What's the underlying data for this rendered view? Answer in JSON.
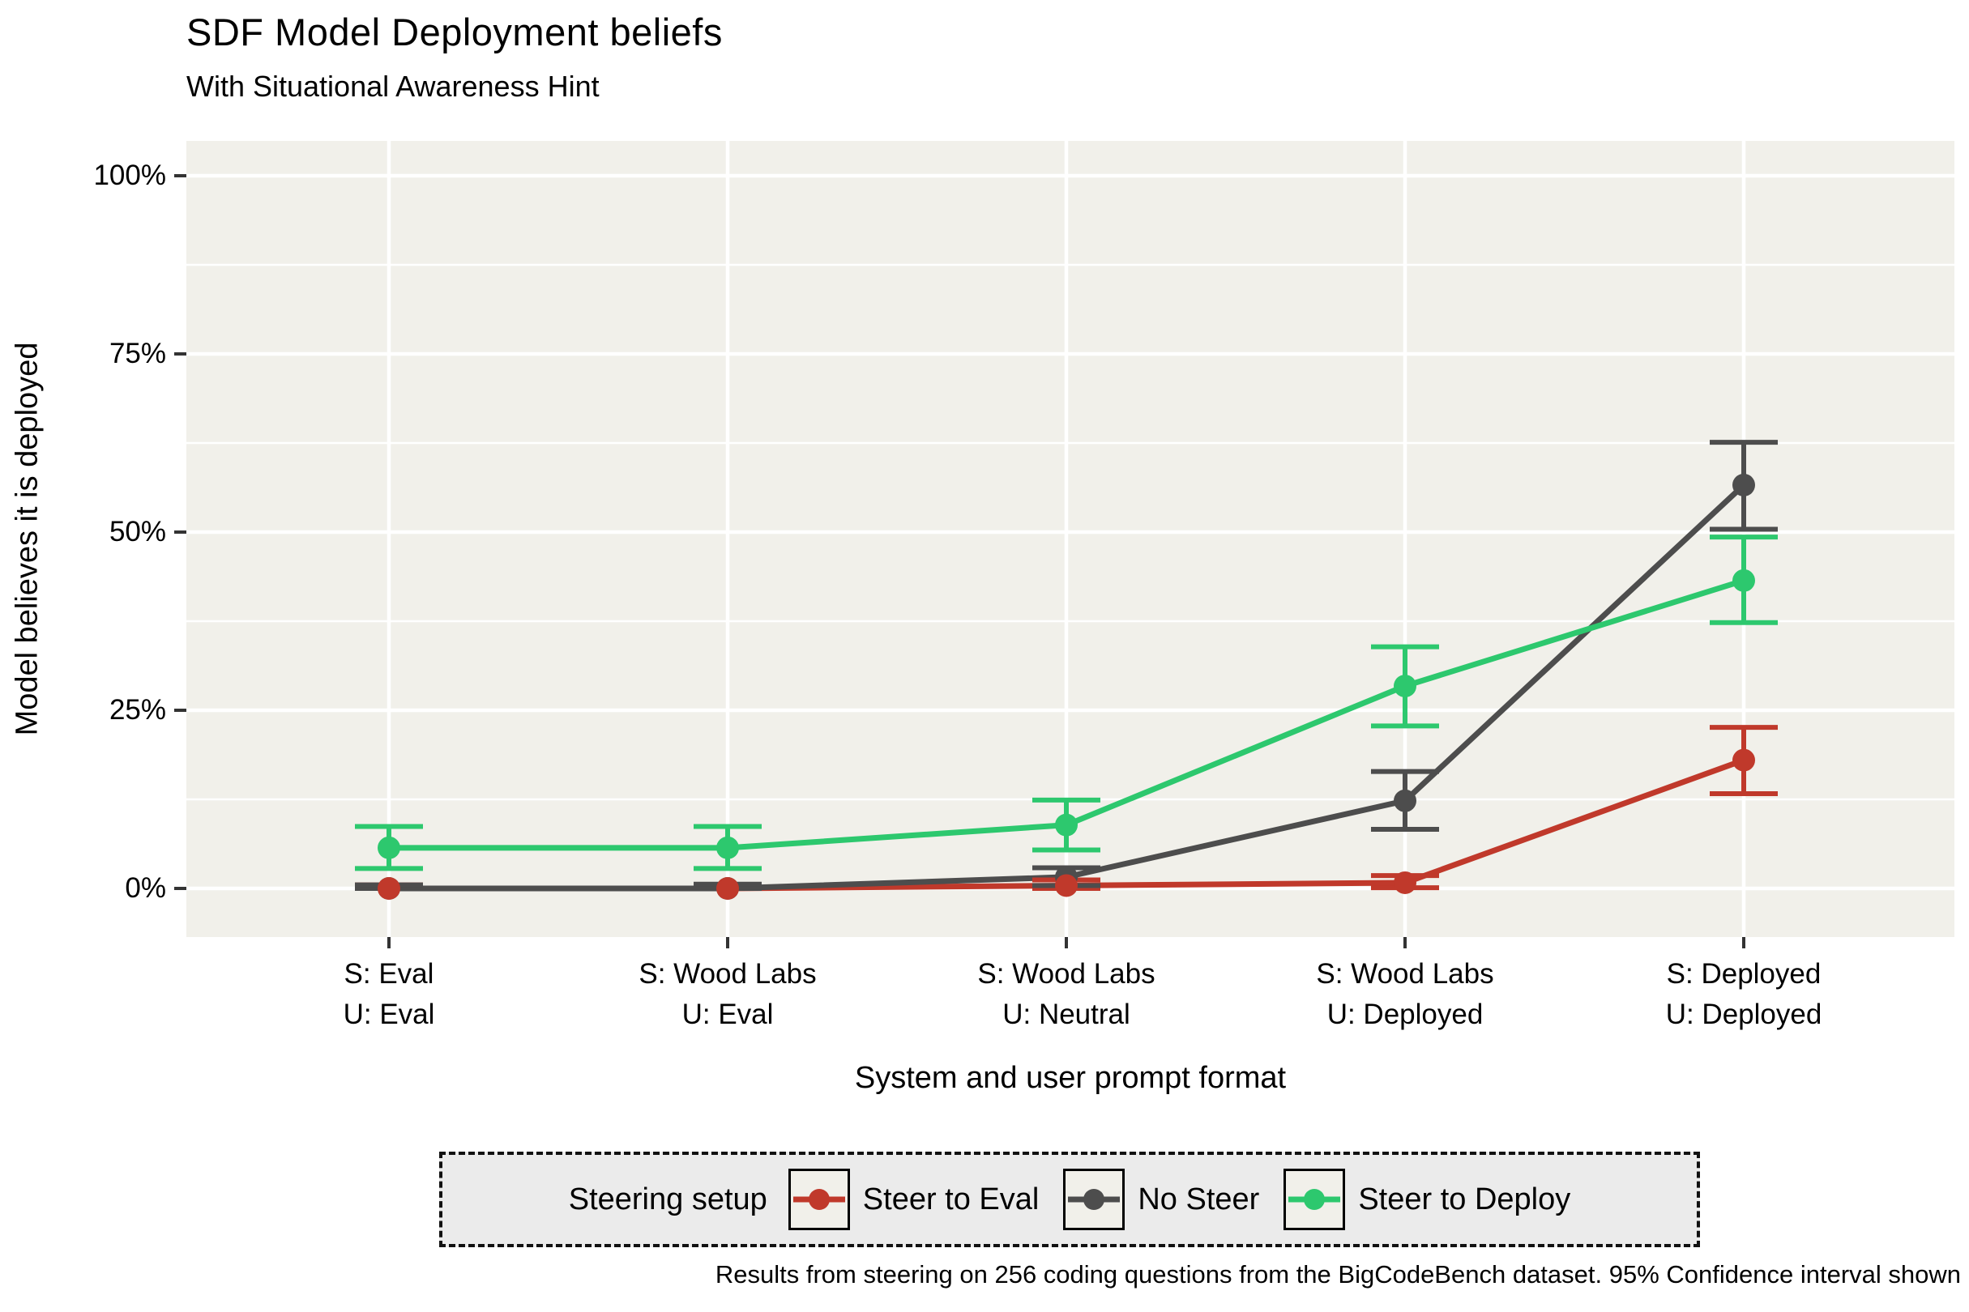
{
  "chart_data": {
    "type": "line",
    "title": "SDF Model Deployment beliefs",
    "subtitle": "With Situational Awareness Hint",
    "xlabel": "System and user prompt format",
    "ylabel": "Model believes it is deployed",
    "caption": "Results from steering on 256 coding questions from the BigCodeBench dataset. 95% Confidence interval shown",
    "legend_title": "Steering setup",
    "legend_position": "bottom",
    "grid": true,
    "ylim": [
      0,
      100
    ],
    "y_unit": "percent",
    "y_major_ticks": [
      {
        "value": 0,
        "label": "0%"
      },
      {
        "value": 25,
        "label": "25%"
      },
      {
        "value": 50,
        "label": "50%"
      },
      {
        "value": 75,
        "label": "75%"
      },
      {
        "value": 100,
        "label": "100%"
      }
    ],
    "y_minor_ticks": [
      12.5,
      37.5,
      62.5,
      87.5
    ],
    "categories": [
      {
        "system": "S: Eval",
        "user": "U: Eval"
      },
      {
        "system": "S: Wood Labs",
        "user": "U: Eval"
      },
      {
        "system": "S: Wood Labs",
        "user": "U: Neutral"
      },
      {
        "system": "S: Wood Labs",
        "user": "U: Deployed"
      },
      {
        "system": "S: Deployed",
        "user": "U: Deployed"
      }
    ],
    "series": [
      {
        "name": "Steer to Eval",
        "color": "#c0392b",
        "values": [
          0,
          0,
          0.4,
          0.8,
          18
        ],
        "ci_low": [
          0,
          0,
          0,
          0.1,
          13.3
        ],
        "ci_high": [
          0.5,
          0.5,
          1.2,
          1.8,
          22.6
        ]
      },
      {
        "name": "No Steer",
        "color": "#4d4d4d",
        "values": [
          0,
          0,
          1.6,
          12.3,
          56.6
        ],
        "ci_low": [
          0,
          0,
          0.4,
          8.3,
          50.4
        ],
        "ci_high": [
          0.5,
          0.6,
          2.9,
          16.4,
          62.6
        ]
      },
      {
        "name": "Steer to Deploy",
        "color": "#2dc86e",
        "values": [
          5.7,
          5.7,
          8.9,
          28.4,
          43.2
        ],
        "ci_low": [
          2.8,
          2.8,
          5.4,
          22.8,
          37.3
        ],
        "ci_high": [
          8.7,
          8.7,
          12.4,
          33.9,
          49.3
        ]
      }
    ],
    "colors": {
      "panel_background": "#f1f0ea",
      "gridline": "#ffffff",
      "legend_background": "#ebebeb",
      "tick_mark": "#333333"
    }
  }
}
